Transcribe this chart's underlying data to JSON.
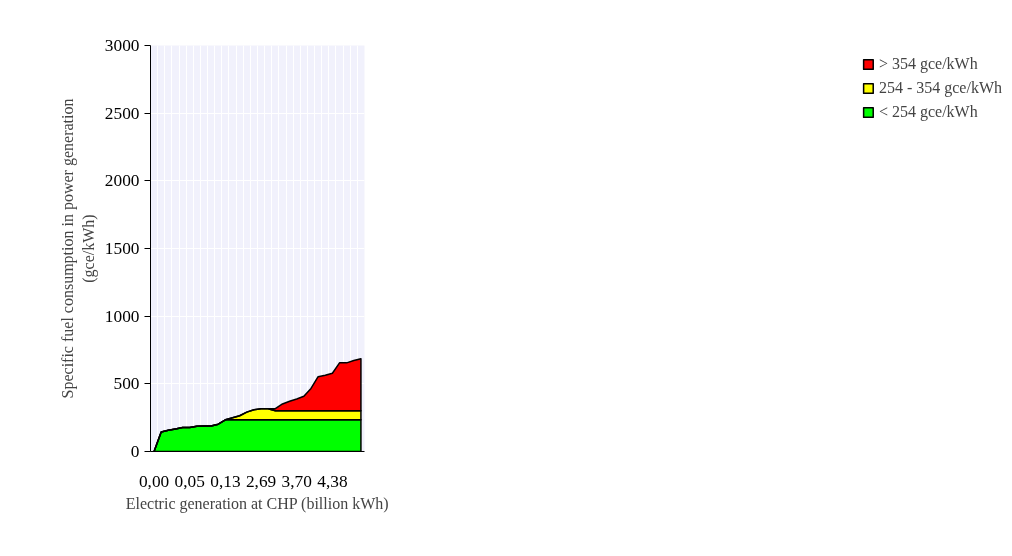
{
  "chart_data": {
    "type": "area",
    "stacked": true,
    "xlabel": "Electric generation at CHP (billion kWh)",
    "ylabel": "Specific fuel consumption in power generation\n(gce/kWh)",
    "categories": [
      "0,00",
      null,
      null,
      null,
      null,
      "0,05",
      null,
      null,
      null,
      null,
      "0,13",
      null,
      null,
      null,
      null,
      "2,69",
      null,
      null,
      null,
      null,
      "3,70",
      null,
      null,
      null,
      null,
      "4,38",
      null,
      null,
      null,
      null
    ],
    "series": [
      {
        "name": "< 254 gce/kWh",
        "color": "#00ff00",
        "values": [
          0,
          144,
          157,
          167,
          177,
          177,
          187,
          189,
          189,
          202,
          234,
          234,
          234,
          234,
          234,
          234,
          234,
          234,
          234,
          234,
          234,
          234,
          234,
          234,
          234,
          234,
          234,
          234,
          234,
          234
        ]
      },
      {
        "name": "254 - 354 gce/kWh",
        "color": "#ffff00",
        "values": [
          0,
          0,
          0,
          0,
          0,
          0,
          0,
          0,
          0,
          0,
          0,
          15,
          30,
          57,
          75,
          82,
          82,
          67,
          67,
          67,
          67,
          67,
          67,
          67,
          67,
          67,
          67,
          67,
          67,
          67
        ]
      },
      {
        "name": "> 354 gce/kWh",
        "color": "#ff0000",
        "values": [
          0,
          0,
          0,
          0,
          0,
          0,
          0,
          0,
          0,
          0,
          0,
          0,
          0,
          0,
          0,
          0,
          0,
          15,
          50,
          70,
          87,
          107,
          165,
          252,
          262,
          277,
          354,
          354,
          371,
          384
        ]
      }
    ],
    "ylim": [
      0,
      3000
    ],
    "yticks": [
      0,
      500,
      1000,
      1500,
      2000,
      2500,
      3000
    ],
    "grid": true,
    "legend": "right"
  }
}
